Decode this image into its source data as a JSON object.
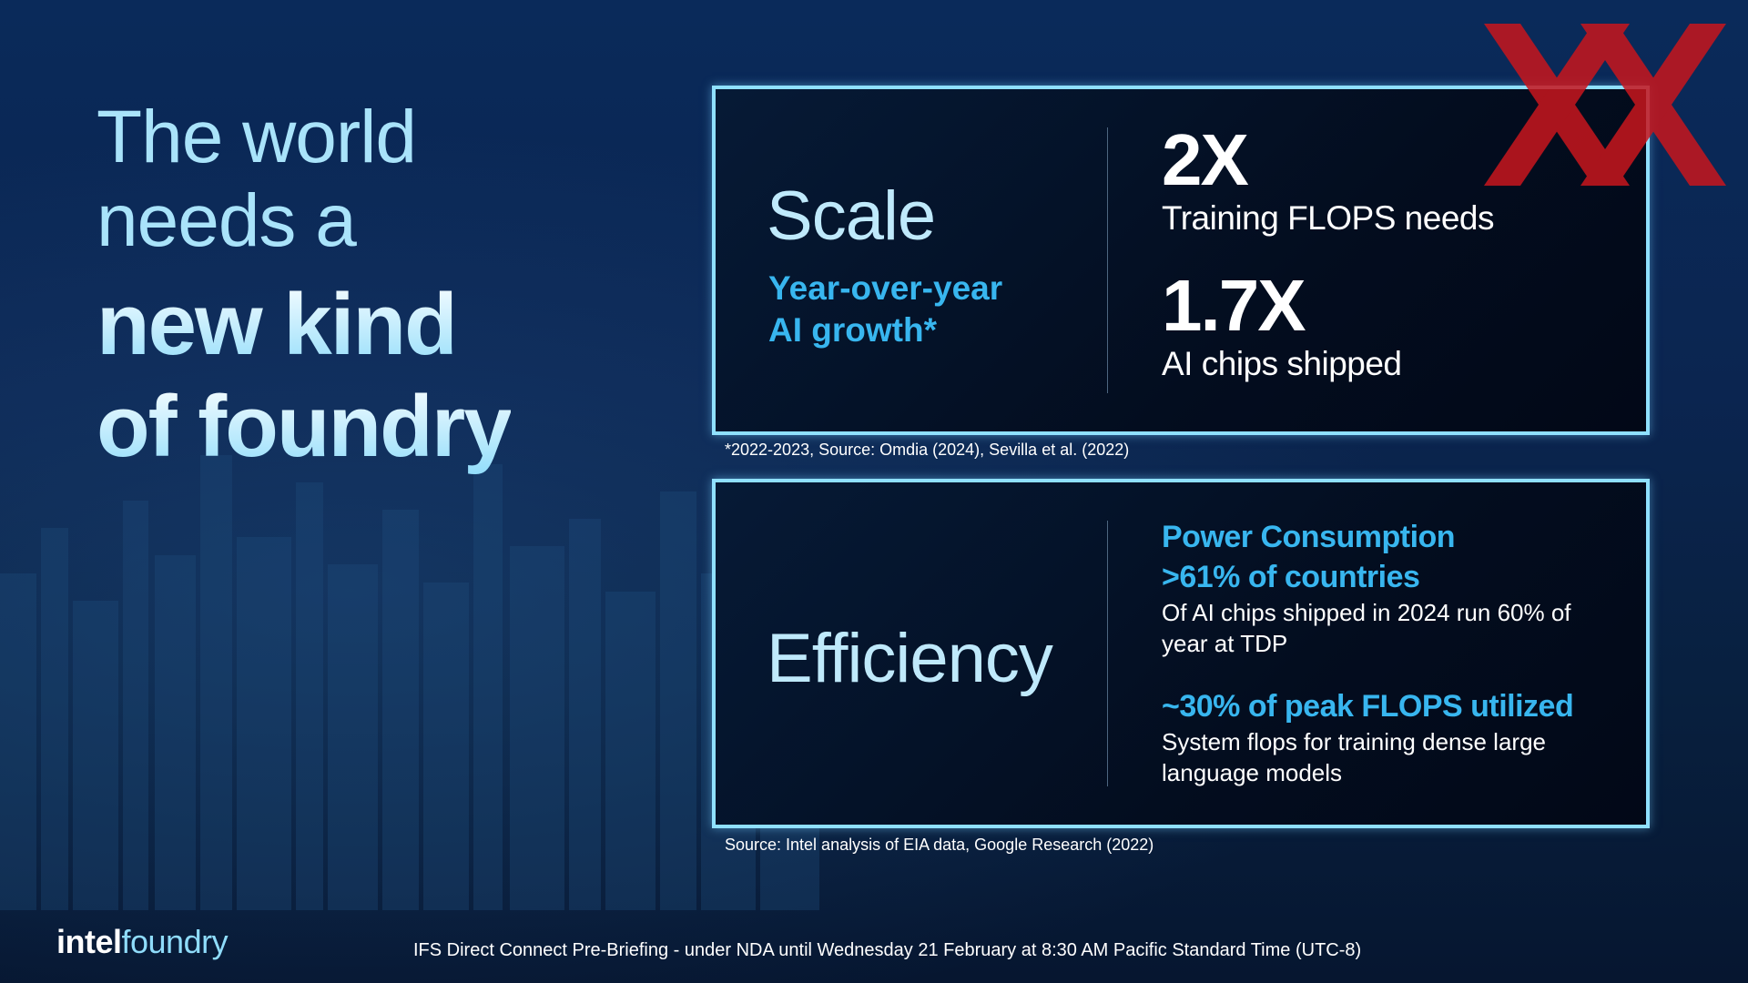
{
  "headline": {
    "line1": "The world",
    "line2": "needs a",
    "line3": "new kind",
    "line4": "of foundry"
  },
  "scale_card": {
    "title": "Scale",
    "subtitle_line1": "Year-over-year",
    "subtitle_line2": "AI growth*",
    "stat1_value": "2X",
    "stat1_label": "Training FLOPS needs",
    "stat2_value": "1.7X",
    "stat2_label": "AI chips shipped",
    "footnote": "*2022-2023, Source: Omdia (2024), Sevilla et al. (2022)"
  },
  "efficiency_card": {
    "title": "Efficiency",
    "item1_heading": "Power Consumption",
    "item1_value": ">61% of countries",
    "item1_desc_line1": "Of AI chips shipped in 2024 run 60% of",
    "item1_desc_line2": "year at TDP",
    "item2_heading": "~30% of peak FLOPS utilized",
    "item2_desc_line1": "System flops for training dense large",
    "item2_desc_line2": "language models",
    "footnote": "Source: Intel analysis of EIA data, Google Research  (2022)"
  },
  "logo": {
    "part1": "intel",
    "part2": "foundry"
  },
  "footer": "IFS Direct Connect Pre-Briefing - under NDA until Wednesday 21 February at 8:30 AM Pacific Standard Time (UTC-8)",
  "colors": {
    "accent_blue": "#38b6ef",
    "border": "#8fe0ff",
    "watermark_red": "#c8161d"
  }
}
